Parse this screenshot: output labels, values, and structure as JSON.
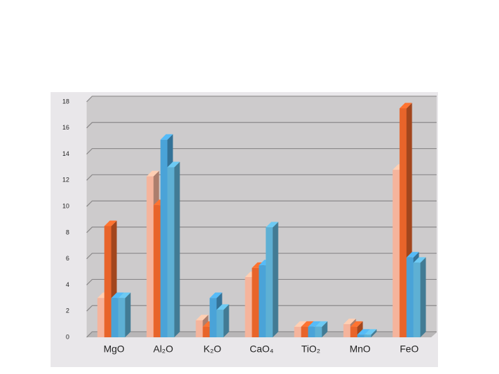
{
  "chart_data": {
    "type": "bar3d",
    "categories": [
      "MgO",
      "Al₂O",
      "K₂O",
      "CaO₄",
      "TiO₂",
      "MnO",
      "FeO"
    ],
    "series": [
      {
        "color": "#f5b49c",
        "values": [
          3,
          12.3,
          1.3,
          4.6,
          0.8,
          1,
          12.8
        ]
      },
      {
        "color": "#e8642a",
        "values": [
          8.5,
          10.1,
          0.8,
          5.3,
          0.8,
          0.8,
          17.5
        ]
      },
      {
        "color": "#4aa3d8",
        "values": [
          3,
          15.1,
          3,
          5.5,
          0.8,
          0.2,
          6.1
        ]
      },
      {
        "color": "#5eb0d4",
        "values": [
          3,
          13,
          2.1,
          8.4,
          0.8,
          0.2,
          5.7
        ]
      }
    ],
    "ylim": [
      0,
      18
    ],
    "yticks": [
      0,
      2,
      4,
      6,
      8,
      10,
      12,
      14,
      16,
      18
    ],
    "grid": true
  }
}
